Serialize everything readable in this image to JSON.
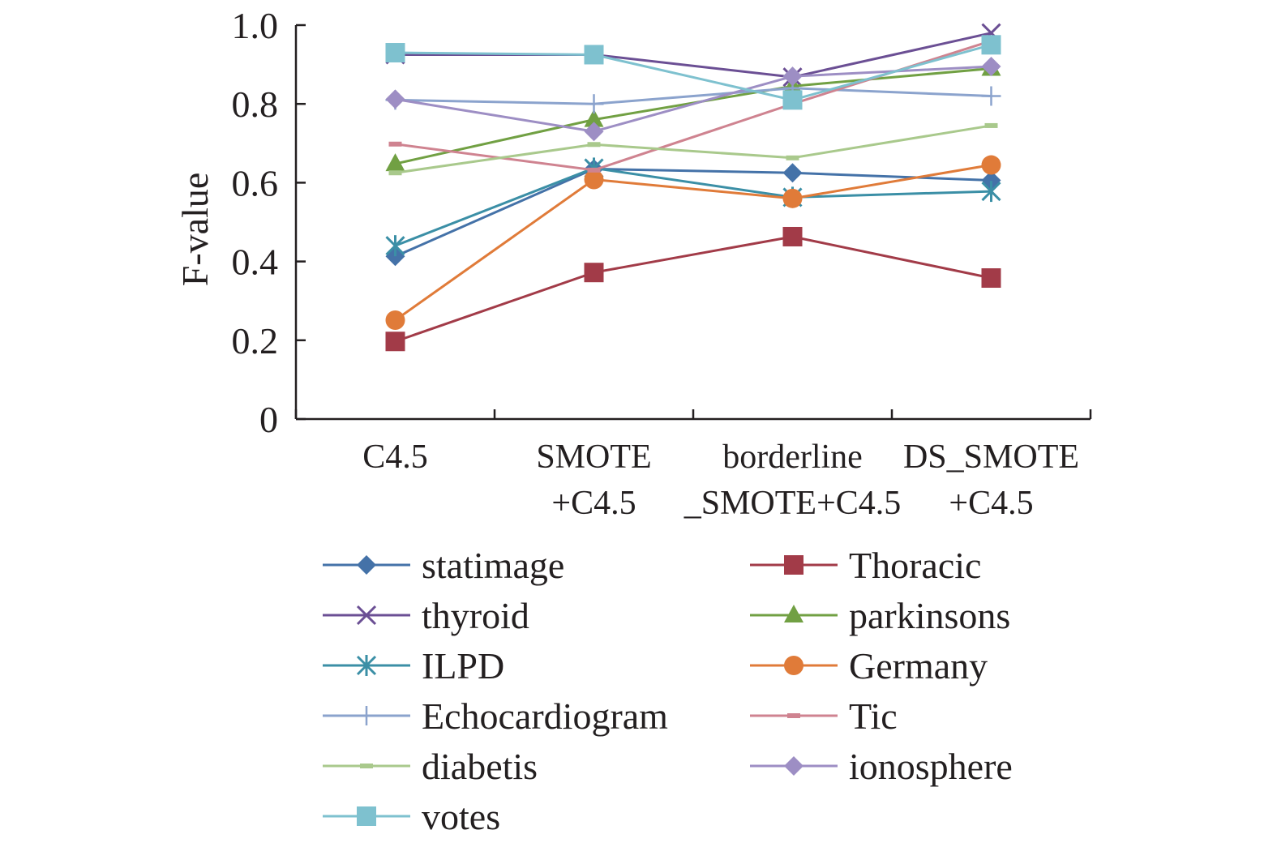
{
  "chart_data": {
    "type": "line",
    "title": "",
    "xlabel": "",
    "ylabel": "F-value",
    "ylim": [
      0,
      1.0
    ],
    "yticks": [
      0,
      0.2,
      0.4,
      0.6,
      0.8,
      1.0
    ],
    "ytick_labels": [
      "0",
      "0.2",
      "0.4",
      "0.6",
      "0.8",
      "1.0"
    ],
    "categories": [
      [
        "C4.5"
      ],
      [
        "SMOTE",
        "+C4.5"
      ],
      [
        "borderline",
        "_SMOTE+C4.5"
      ],
      [
        "DS_SMOTE",
        "+C4.5"
      ]
    ],
    "series": [
      {
        "name": "statimage",
        "color": "#4472a8",
        "marker": "diamond",
        "values": [
          0.413,
          0.635,
          0.625,
          0.606
        ]
      },
      {
        "name": "Thoracic",
        "color": "#a23b48",
        "marker": "square",
        "values": [
          0.197,
          0.372,
          0.463,
          0.358
        ]
      },
      {
        "name": "thyroid",
        "color": "#6b4f94",
        "marker": "x",
        "values": [
          0.925,
          0.925,
          0.868,
          0.98
        ]
      },
      {
        "name": "parkinsons",
        "color": "#71a043",
        "marker": "triangle",
        "values": [
          0.648,
          0.76,
          0.845,
          0.89
        ]
      },
      {
        "name": "ILPD",
        "color": "#3b8fa6",
        "marker": "star",
        "values": [
          0.44,
          0.637,
          0.563,
          0.578
        ]
      },
      {
        "name": "Germany",
        "color": "#e07b39",
        "marker": "circle",
        "values": [
          0.251,
          0.608,
          0.56,
          0.645
        ]
      },
      {
        "name": "Echocardiogram",
        "color": "#8ba3cd",
        "marker": "plus",
        "values": [
          0.81,
          0.8,
          0.84,
          0.82
        ]
      },
      {
        "name": "Tic",
        "color": "#cf8390",
        "marker": "dash",
        "values": [
          0.698,
          0.632,
          0.8,
          0.96
        ]
      },
      {
        "name": "diabetis",
        "color": "#a9c98c",
        "marker": "dash",
        "values": [
          0.625,
          0.697,
          0.663,
          0.745
        ]
      },
      {
        "name": "ionosphere",
        "color": "#9d8ec4",
        "marker": "diamond",
        "values": [
          0.812,
          0.73,
          0.87,
          0.895
        ]
      },
      {
        "name": "votes",
        "color": "#7ec1cf",
        "marker": "square",
        "values": [
          0.93,
          0.925,
          0.81,
          0.95
        ]
      }
    ],
    "legend_position": "bottom"
  }
}
